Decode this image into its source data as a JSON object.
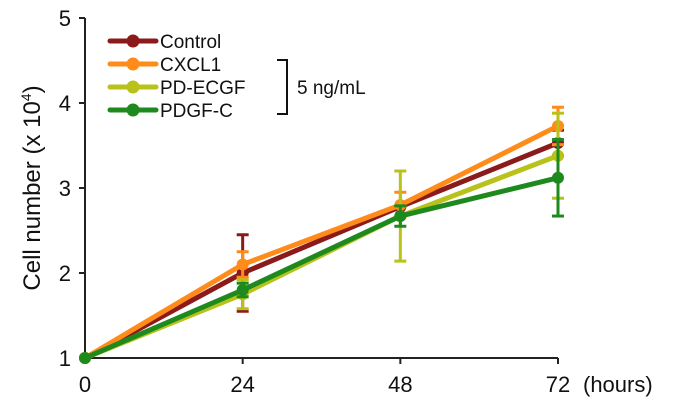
{
  "chart_data": {
    "type": "line",
    "x": [
      0,
      24,
      48,
      72
    ],
    "x_tick_labels": [
      "0",
      "24",
      "48",
      "72"
    ],
    "x_unit_label": "(hours)",
    "xlim": [
      0,
      72
    ],
    "ylabel": "Cell number",
    "ylabel_unit": "(x 10",
    "ylabel_exponent": "4",
    "ylabel_close": ")",
    "ylim": [
      1,
      5
    ],
    "y_ticks": [
      1,
      2,
      3,
      4,
      5
    ],
    "grid": false,
    "legend_position": "top-left",
    "bracket_note": "5 ng/mL",
    "series": [
      {
        "name": "Control",
        "color": "#8b1a1a",
        "values": [
          1.0,
          2.0,
          2.78,
          3.53
        ],
        "errors": [
          0,
          0.45,
          0,
          0.15
        ]
      },
      {
        "name": "CXCL1",
        "color": "#ff8c1a",
        "values": [
          1.0,
          2.1,
          2.8,
          3.73
        ],
        "errors": [
          0,
          0.15,
          0.15,
          0.22
        ]
      },
      {
        "name": "PD-ECGF",
        "color": "#b8c21a",
        "values": [
          1.0,
          1.75,
          2.67,
          3.38
        ],
        "errors": [
          0,
          0.17,
          0.53,
          0.5
        ]
      },
      {
        "name": "PDGF-C",
        "color": "#1e8a1e",
        "values": [
          1.0,
          1.8,
          2.67,
          3.12
        ],
        "errors": [
          0,
          0.08,
          0.12,
          0.45
        ]
      }
    ]
  }
}
